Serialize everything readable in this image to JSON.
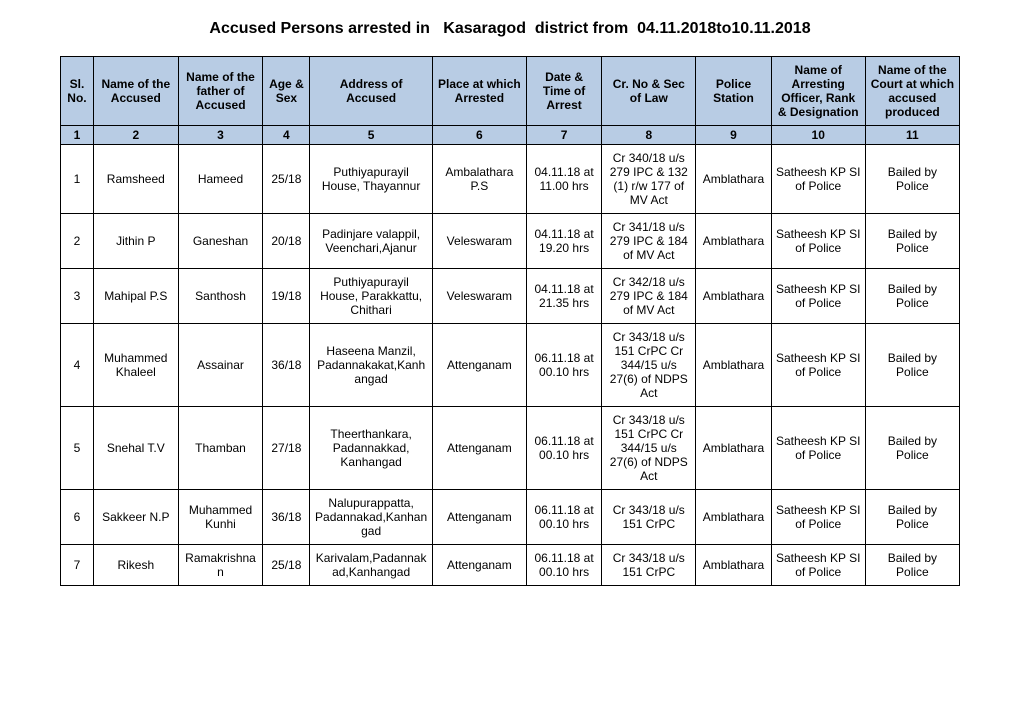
{
  "title": "Accused Persons arrested in   Kasaragod  district from  04.11.2018to10.11.2018",
  "headers": [
    "Sl. No.",
    "Name of the Accused",
    "Name of the father of Accused",
    "Age & Sex",
    "Address of Accused",
    "Place at which Arrested",
    "Date & Time of Arrest",
    "Cr. No & Sec of Law",
    "Police Station",
    "Name of Arresting Officer, Rank & Designation",
    "Name of the Court at which accused produced"
  ],
  "colnums": [
    "1",
    "2",
    "3",
    "4",
    "5",
    "6",
    "7",
    "8",
    "9",
    "10",
    "11"
  ],
  "rows": [
    {
      "sl": "1",
      "name": "Ramsheed",
      "father": "Hameed",
      "age": "25/18",
      "addr": "Puthiyapurayil House, Thayannur",
      "place": "Ambalathara P.S",
      "date": "04.11.18 at 11.00 hrs",
      "crno": "Cr 340/18 u/s 279 IPC & 132 (1) r/w 177 of MV Act",
      "ps": "Amblathara",
      "officer": "Satheesh KP SI of Police",
      "court": "Bailed by Police"
    },
    {
      "sl": "2",
      "name": "Jithin P",
      "father": "Ganeshan",
      "age": "20/18",
      "addr": "Padinjare valappil, Veenchari,Ajanur",
      "place": "Veleswaram",
      "date": "04.11.18 at 19.20 hrs",
      "crno": "Cr 341/18 u/s 279 IPC & 184 of MV Act",
      "ps": "Amblathara",
      "officer": "Satheesh KP SI of Police",
      "court": "Bailed by Police"
    },
    {
      "sl": "3",
      "name": "Mahipal P.S",
      "father": "Santhosh",
      "age": "19/18",
      "addr": "Puthiyapurayil House, Parakkattu, Chithari",
      "place": "Veleswaram",
      "date": "04.11.18 at 21.35 hrs",
      "crno": "Cr 342/18 u/s 279 IPC & 184 of MV Act",
      "ps": "Amblathara",
      "officer": "Satheesh KP SI of Police",
      "court": "Bailed by Police"
    },
    {
      "sl": "4",
      "name": "Muhammed Khaleel",
      "father": "Assainar",
      "age": "36/18",
      "addr": "Haseena Manzil, Padannakakat,Kanhangad",
      "place": "Attenganam",
      "date": "06.11.18 at 00.10 hrs",
      "crno": "Cr 343/18 u/s 151 CrPC Cr 344/15 u/s 27(6) of NDPS Act",
      "ps": "Amblathara",
      "officer": "Satheesh KP SI of Police",
      "court": "Bailed by Police"
    },
    {
      "sl": "5",
      "name": "Snehal T.V",
      "father": "Thamban",
      "age": "27/18",
      "addr": "Theerthankara, Padannakkad, Kanhangad",
      "place": "Attenganam",
      "date": "06.11.18 at 00.10 hrs",
      "crno": "Cr 343/18 u/s 151 CrPC Cr 344/15 u/s 27(6) of NDPS Act",
      "ps": "Amblathara",
      "officer": "Satheesh KP SI of Police",
      "court": "Bailed by Police"
    },
    {
      "sl": "6",
      "name": "Sakkeer N.P",
      "father": "Muhammed Kunhi",
      "age": "36/18",
      "addr": "Nalupurappatta, Padannakad,Kanhangad",
      "place": "Attenganam",
      "date": "06.11.18 at 00.10 hrs",
      "crno": "Cr 343/18 u/s 151 CrPC",
      "ps": "Amblathara",
      "officer": "Satheesh KP SI of Police",
      "court": "Bailed by Police"
    },
    {
      "sl": "7",
      "name": "Rikesh",
      "father": "Ramakrishnan",
      "age": "25/18",
      "addr": "Karivalam,Padannakad,Kanhangad",
      "place": "Attenganam",
      "date": "06.11.18 at 00.10 hrs",
      "crno": "Cr 343/18 u/s 151 CrPC",
      "ps": "Amblathara",
      "officer": "Satheesh KP SI of Police",
      "court": "Bailed by Police"
    }
  ]
}
